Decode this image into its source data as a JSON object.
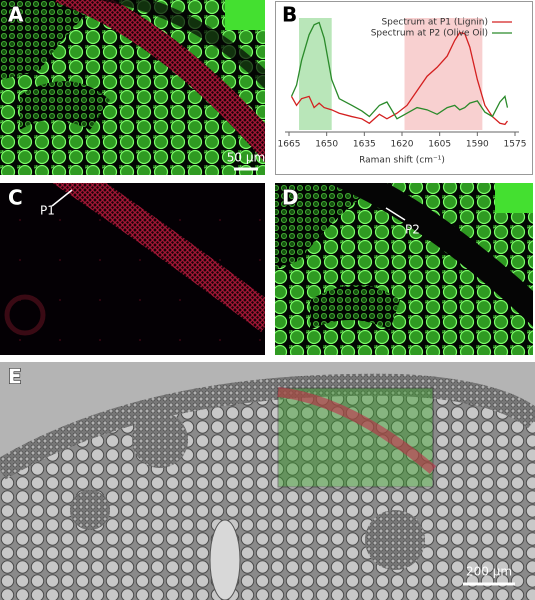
{
  "panels": {
    "A": {
      "label": "A",
      "scale_bar": "50 µm"
    },
    "C": {
      "label": "C",
      "point": "P1"
    },
    "D": {
      "label": "D",
      "point": "P2"
    },
    "E": {
      "label": "E",
      "scale_bar": "200 µm"
    }
  },
  "chart_data": {
    "type": "line",
    "label": "B",
    "x_label": "Raman shift (cm⁻¹)",
    "xlim": [
      1665,
      1575
    ],
    "xticks": [
      1665,
      1650,
      1635,
      1620,
      1605,
      1590,
      1575
    ],
    "ylim": [
      0,
      1
    ],
    "x": [
      1664,
      1662,
      1660,
      1657,
      1655,
      1653,
      1651,
      1648,
      1645,
      1640,
      1636,
      1633,
      1629,
      1626,
      1622,
      1618,
      1614,
      1610,
      1606,
      1602,
      1599,
      1597,
      1595,
      1593,
      1590,
      1587,
      1584,
      1581,
      1579,
      1578
    ],
    "series": [
      {
        "name": "Spectrum at P1 (Lignin)",
        "color": "#d42020",
        "values": [
          0.3,
          0.22,
          0.28,
          0.3,
          0.2,
          0.24,
          0.2,
          0.18,
          0.15,
          0.12,
          0.1,
          0.06,
          0.14,
          0.1,
          0.15,
          0.22,
          0.35,
          0.48,
          0.56,
          0.66,
          0.8,
          0.87,
          0.86,
          0.74,
          0.45,
          0.22,
          0.12,
          0.06,
          0.05,
          0.08
        ]
      },
      {
        "name": "Spectrum at P2 (Olive Oil)",
        "color": "#2a8a2a",
        "values": [
          0.3,
          0.4,
          0.62,
          0.85,
          0.94,
          0.96,
          0.82,
          0.45,
          0.28,
          0.22,
          0.17,
          0.12,
          0.22,
          0.25,
          0.1,
          0.15,
          0.2,
          0.18,
          0.14,
          0.2,
          0.22,
          0.18,
          0.2,
          0.24,
          0.26,
          0.16,
          0.12,
          0.25,
          0.3,
          0.2
        ]
      }
    ],
    "highlights": [
      {
        "range": [
          1661,
          1648
        ],
        "color": "#a8e0a8"
      },
      {
        "range": [
          1619,
          1588
        ],
        "color": "#f6c4c4"
      }
    ],
    "legend": "upper right"
  }
}
